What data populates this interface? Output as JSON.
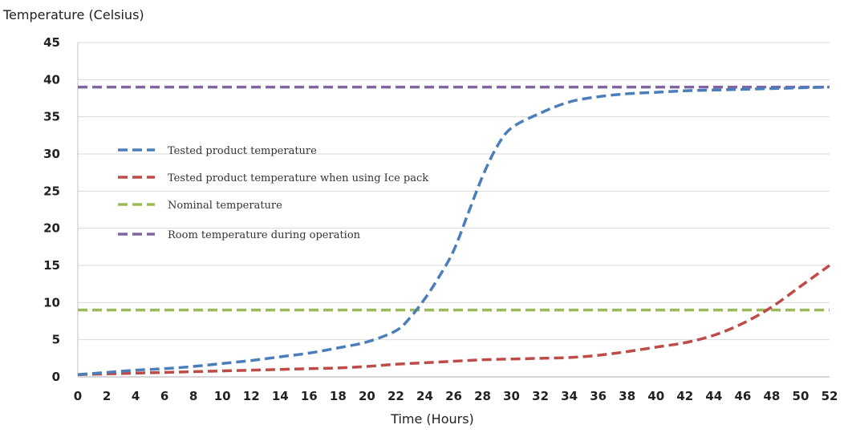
{
  "chart_data": {
    "type": "line",
    "ylabel": "Temperature (Celsius)",
    "xlabel": "Time (Hours)",
    "xlim": [
      0,
      52
    ],
    "ylim": [
      0,
      45
    ],
    "xticks": [
      0,
      2,
      4,
      6,
      8,
      10,
      12,
      14,
      16,
      18,
      20,
      22,
      24,
      26,
      28,
      30,
      32,
      34,
      36,
      38,
      40,
      42,
      44,
      46,
      48,
      50,
      52
    ],
    "yticks": [
      0,
      5,
      10,
      15,
      20,
      25,
      30,
      35,
      40,
      45
    ],
    "grid": "horizontal",
    "legend_placement": "left-center",
    "series": [
      {
        "name": "Tested product temperature",
        "color": "#4a7ebb",
        "x": [
          0,
          2,
          4,
          6,
          8,
          10,
          12,
          14,
          16,
          18,
          20,
          22,
          23,
          24,
          25,
          26,
          27,
          28,
          29,
          30,
          32,
          34,
          36,
          38,
          40,
          42,
          44,
          46,
          48,
          50,
          52
        ],
        "y": [
          0.3,
          0.6,
          0.9,
          1.1,
          1.4,
          1.8,
          2.2,
          2.7,
          3.2,
          3.9,
          4.7,
          6.2,
          8.0,
          10.5,
          13.5,
          17.0,
          22.0,
          27.0,
          31.0,
          33.5,
          35.5,
          37.0,
          37.7,
          38.1,
          38.3,
          38.5,
          38.6,
          38.7,
          38.8,
          38.9,
          39.0
        ]
      },
      {
        "name": "Tested product temperature when using Ice pack",
        "color": "#be4b48",
        "x": [
          0,
          2,
          4,
          6,
          8,
          10,
          12,
          14,
          16,
          18,
          20,
          22,
          24,
          26,
          28,
          30,
          32,
          34,
          36,
          38,
          40,
          42,
          44,
          46,
          48,
          50,
          52
        ],
        "y": [
          0.3,
          0.4,
          0.5,
          0.6,
          0.7,
          0.8,
          0.9,
          1.0,
          1.1,
          1.2,
          1.4,
          1.7,
          1.9,
          2.1,
          2.3,
          2.4,
          2.5,
          2.6,
          2.9,
          3.4,
          4.0,
          4.6,
          5.6,
          7.2,
          9.4,
          12.2,
          15.0
        ]
      },
      {
        "name": "Nominal temperature",
        "color": "#9bbb59",
        "x": [
          0,
          52
        ],
        "y": [
          9,
          9
        ]
      },
      {
        "name": "Room temperature during operation",
        "color": "#8064a2",
        "x": [
          0,
          52
        ],
        "y": [
          39,
          39
        ]
      }
    ]
  }
}
